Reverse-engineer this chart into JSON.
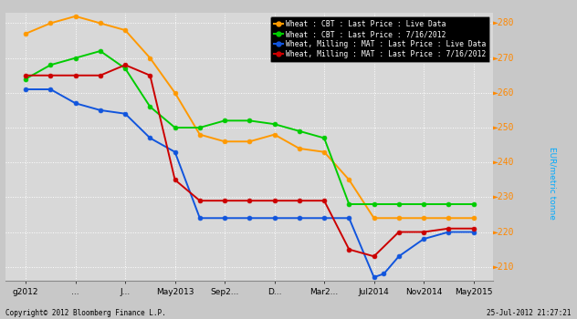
{
  "ylabel": "EUR/metric tonne",
  "background_color": "#c8c8c8",
  "plot_background_color": "#d8d8d8",
  "grid_color": "#ffffff",
  "ylim": [
    206,
    283
  ],
  "yticks": [
    210,
    220,
    230,
    240,
    250,
    260,
    270,
    280
  ],
  "x_labels": [
    "g2012",
    "...",
    "J...",
    "May2013",
    "Sep2...",
    "D...",
    "Mar2...",
    "Jul2014",
    "Nov2014",
    "May2015"
  ],
  "x_positions": [
    0,
    1,
    2,
    3,
    4,
    5,
    6,
    7,
    8,
    9
  ],
  "series": [
    {
      "name": "Wheat : CBT : Last Price : Live Data",
      "color": "#ff9900",
      "x": [
        0,
        0.5,
        1,
        1.5,
        2,
        2.5,
        3,
        3.5,
        4,
        4.5,
        5,
        5.5,
        6,
        6.5,
        7,
        7.5,
        8,
        8.5,
        9
      ],
      "y": [
        277,
        280,
        282,
        280,
        278,
        270,
        260,
        248,
        246,
        246,
        248,
        244,
        243,
        235,
        224,
        224,
        224,
        224,
        224
      ]
    },
    {
      "name": "Wheat : CBT : Last Price : 7/16/2012",
      "color": "#00cc00",
      "x": [
        0,
        0.5,
        1,
        1.5,
        2,
        2.5,
        3,
        3.5,
        4,
        4.5,
        5,
        5.5,
        6,
        6.5,
        7,
        7.5,
        8,
        8.5,
        9
      ],
      "y": [
        264,
        268,
        270,
        272,
        267,
        256,
        250,
        250,
        252,
        252,
        251,
        249,
        247,
        228,
        228,
        228,
        228,
        228,
        228
      ]
    },
    {
      "name": "Wheat, Milling : MAT : Last Price : Live Data",
      "color": "#1155dd",
      "x": [
        0,
        0.5,
        1,
        1.5,
        2,
        2.5,
        3,
        3.5,
        4,
        4.5,
        5,
        5.5,
        6,
        6.5,
        7,
        7.2,
        7.5,
        8,
        8.5,
        9
      ],
      "y": [
        261,
        261,
        257,
        255,
        254,
        247,
        243,
        224,
        224,
        224,
        224,
        224,
        224,
        224,
        207,
        208,
        213,
        218,
        220,
        220
      ]
    },
    {
      "name": "Wheat, Milling : MAT : Last Price : 7/16/2012",
      "color": "#cc0000",
      "x": [
        0,
        0.5,
        1,
        1.5,
        2,
        2.5,
        3,
        3.5,
        4,
        4.5,
        5,
        5.5,
        6,
        6.5,
        7,
        7.5,
        8,
        8.5,
        9
      ],
      "y": [
        265,
        265,
        265,
        265,
        268,
        265,
        235,
        229,
        229,
        229,
        229,
        229,
        229,
        215,
        213,
        220,
        220,
        221,
        221
      ]
    }
  ],
  "legend_labels": [
    "Wheat : CBT : Last Price : Live Data",
    "Wheat : CBT : Last Price : 7/16/2012",
    "Wheat, Milling : MAT : Last Price : Live Data",
    "Wheat, Milling : MAT : Last Price : 7/16/2012"
  ],
  "legend_colors": [
    "#ff9900",
    "#00cc00",
    "#1155dd",
    "#cc0000"
  ],
  "footer_left": "Copyright© 2012 Bloomberg Finance L.P.",
  "footer_right": "25-Jul-2012 21:27:21"
}
